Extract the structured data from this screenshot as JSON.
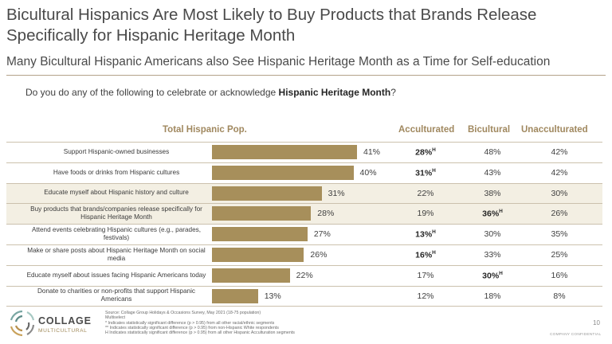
{
  "header": {
    "title": "Bicultural Hispanics Are Most Likely to Buy Products that Brands Release Specifically for Hispanic Heritage Month",
    "subtitle": "Many Bicultural Hispanic Americans also See Hispanic Heritage Month as a Time for Self-education",
    "question_prefix": "Do you do any of the following to celebrate or acknowledge ",
    "question_bold": "Hispanic Heritage Month",
    "question_suffix": "?"
  },
  "chart_data": {
    "type": "bar",
    "orientation": "horizontal",
    "title": "Total Hispanic Pop.",
    "categories": [
      "Support Hispanic-owned businesses",
      "Have foods or drinks from Hispanic cultures",
      "Educate myself about Hispanic history and culture",
      "Buy products that brands/companies release specifically for Hispanic Heritage Month",
      "Attend events celebrating Hispanic cultures (e.g., parades, festivals)",
      "Make or share posts about Hispanic Heritage Month on social media",
      "Educate myself about issues facing Hispanic Americans today",
      "Donate to charities or non-profits that support Hispanic Americans"
    ],
    "values": [
      41,
      40,
      31,
      28,
      27,
      26,
      22,
      13
    ],
    "value_labels": [
      "41%",
      "40%",
      "31%",
      "28%",
      "27%",
      "26%",
      "22%",
      "13%"
    ],
    "bar_color": "#a78f5b",
    "highlight_color": "#f3efe3",
    "highlighted_rows": [
      2,
      3
    ],
    "table": {
      "columns": [
        "Acculturated",
        "Bicultural",
        "Unacculturated"
      ],
      "rows": [
        [
          {
            "v": "28%",
            "sig": "H"
          },
          {
            "v": "48%"
          },
          {
            "v": "42%"
          }
        ],
        [
          {
            "v": "31%",
            "sig": "H"
          },
          {
            "v": "43%"
          },
          {
            "v": "42%"
          }
        ],
        [
          {
            "v": "22%"
          },
          {
            "v": "38%"
          },
          {
            "v": "30%"
          }
        ],
        [
          {
            "v": "19%"
          },
          {
            "v": "36%",
            "sig": "H"
          },
          {
            "v": "26%"
          }
        ],
        [
          {
            "v": "13%",
            "sig": "H"
          },
          {
            "v": "30%"
          },
          {
            "v": "35%"
          }
        ],
        [
          {
            "v": "16%",
            "sig": "H"
          },
          {
            "v": "33%"
          },
          {
            "v": "25%"
          }
        ],
        [
          {
            "v": "17%"
          },
          {
            "v": "30%",
            "sig": "H"
          },
          {
            "v": "16%"
          }
        ],
        [
          {
            "v": "12%"
          },
          {
            "v": "18%"
          },
          {
            "v": "8%"
          }
        ]
      ]
    }
  },
  "footer": {
    "source": "Source: Collage Group Holidays & Occasions Survey, May 2021 (18-75 population)",
    "multiselect": "Multiselect",
    "note1": "* Indicates statistically significant difference (p > 0.95) from all other racial/ethnic segments",
    "note2": "** Indicates statistically significant difference (p > 0.95) from non-Hispanic White respondents",
    "note3": "H Indicates statistically significant difference (p > 0.95) from all other Hispanic Acculturation segments",
    "logo_line1": "COLLAGE",
    "logo_line2": "MULTICULTURAL",
    "page_number": "10",
    "confidential": "COMPANY CONFIDENTIAL"
  }
}
